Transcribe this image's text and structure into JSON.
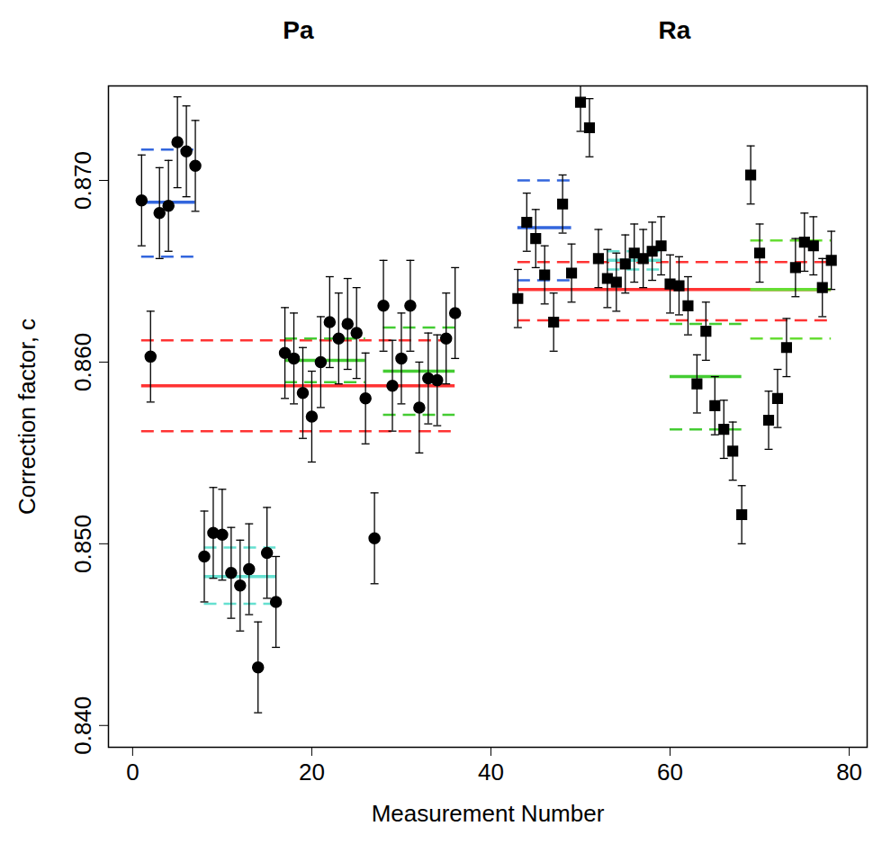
{
  "chart_data": {
    "type": "scatter",
    "xlabel": "Measurement Number",
    "ylabel": "Correction factor, c",
    "xlim": [
      -2.7,
      82
    ],
    "ylim": [
      0.8388,
      0.8752
    ],
    "xticks": [
      0,
      20,
      40,
      60,
      80
    ],
    "yticks": [
      {
        "value": 0.84,
        "label": "0.840"
      },
      {
        "value": 0.85,
        "label": "0.850"
      },
      {
        "value": 0.86,
        "label": "0.860"
      },
      {
        "value": 0.87,
        "label": "0.870"
      }
    ],
    "series": [
      {
        "name": "Pa",
        "marker": "circle",
        "color": "#000000",
        "x": [
          1,
          2,
          3,
          4,
          5,
          6,
          7,
          8,
          9,
          10,
          11,
          12,
          13,
          14,
          15,
          16,
          17,
          18,
          19,
          20,
          21,
          22,
          23,
          24,
          25,
          26,
          27,
          28,
          29,
          30,
          31,
          32,
          33,
          34,
          35,
          36
        ],
        "values": [
          0.8689,
          0.8603,
          0.8682,
          0.8686,
          0.8721,
          0.8716,
          0.8708,
          0.8493,
          0.8506,
          0.8505,
          0.8484,
          0.8477,
          0.8486,
          0.8432,
          0.8495,
          0.8468,
          0.8605,
          0.8602,
          0.8583,
          0.857,
          0.86,
          0.8622,
          0.8613,
          0.8621,
          0.8616,
          0.858,
          0.8503,
          0.8631,
          0.8587,
          0.8602,
          0.8631,
          0.8575,
          0.8591,
          0.859,
          0.8613,
          0.8627
        ],
        "errors": [
          0.0025,
          0.0025,
          0.0025,
          0.0025,
          0.0025,
          0.0025,
          0.0025,
          0.0025,
          0.0025,
          0.0025,
          0.0025,
          0.0025,
          0.0025,
          0.0025,
          0.0025,
          0.0025,
          0.0025,
          0.0025,
          0.0025,
          0.0025,
          0.0025,
          0.0025,
          0.0025,
          0.0025,
          0.0025,
          0.0025,
          0.0025,
          0.0025,
          0.0025,
          0.0025,
          0.0025,
          0.0025,
          0.0025,
          0.0025,
          0.0025,
          0.0025
        ]
      },
      {
        "name": "Ra",
        "marker": "square",
        "color": "#000000",
        "x": [
          43,
          44,
          45,
          46,
          47,
          48,
          49,
          50,
          51,
          52,
          53,
          54,
          55,
          56,
          57,
          58,
          59,
          60,
          61,
          62,
          63,
          64,
          65,
          66,
          67,
          68,
          69,
          70,
          71,
          72,
          73,
          74,
          75,
          76,
          77,
          78
        ],
        "values": [
          0.8635,
          0.8677,
          0.8668,
          0.8648,
          0.8622,
          0.8687,
          0.8649,
          0.8743,
          0.8729,
          0.8657,
          0.8646,
          0.8644,
          0.8654,
          0.866,
          0.8657,
          0.8661,
          0.8664,
          0.8643,
          0.8642,
          0.8631,
          0.8588,
          0.8617,
          0.8576,
          0.8563,
          0.8551,
          0.8516,
          0.8703,
          0.866,
          0.8568,
          0.858,
          0.8608,
          0.8652,
          0.8666,
          0.8664,
          0.8641,
          0.8656
        ],
        "errors": [
          0.0016,
          0.0016,
          0.0016,
          0.0016,
          0.0016,
          0.0016,
          0.0016,
          0.0016,
          0.0016,
          0.0016,
          0.0016,
          0.0016,
          0.0016,
          0.0016,
          0.0016,
          0.0016,
          0.0016,
          0.0016,
          0.0016,
          0.0016,
          0.0016,
          0.0016,
          0.0016,
          0.0016,
          0.0016,
          0.0016,
          0.0016,
          0.0016,
          0.0016,
          0.0016,
          0.0016,
          0.0016,
          0.0016,
          0.0016,
          0.0016,
          0.0016
        ]
      }
    ],
    "reference_lines": [
      {
        "color": "#ff3333",
        "x": [
          1,
          36
        ],
        "mean": 0.8587,
        "lower": 0.8562,
        "upper": 0.8612
      },
      {
        "color": "#3366dd",
        "x": [
          1,
          7
        ],
        "mean": 0.8688,
        "lower": 0.8658,
        "upper": 0.8717
      },
      {
        "color": "#66e0d0",
        "x": [
          8,
          16
        ],
        "mean": 0.8482,
        "lower": 0.8467,
        "upper": 0.8498
      },
      {
        "color": "#44cc33",
        "x": [
          17,
          26
        ],
        "mean": 0.8601,
        "lower": 0.8589,
        "upper": 0.8613
      },
      {
        "color": "#44cc33",
        "x": [
          28,
          36
        ],
        "mean": 0.8595,
        "lower": 0.8571,
        "upper": 0.8619
      },
      {
        "color": "#ff3333",
        "x": [
          43,
          78
        ],
        "mean": 0.864,
        "lower": 0.8623,
        "upper": 0.8655
      },
      {
        "color": "#3366dd",
        "x": [
          43,
          49
        ],
        "mean": 0.8674,
        "lower": 0.8645,
        "upper": 0.87
      },
      {
        "color": "#66e0d0",
        "x": [
          53,
          59
        ],
        "mean": 0.8656,
        "lower": 0.8651,
        "upper": 0.8661
      },
      {
        "color": "#44cc33",
        "x": [
          60,
          68
        ],
        "mean": 0.8592,
        "lower": 0.8563,
        "upper": 0.8621
      },
      {
        "color": "#66dd33",
        "x": [
          69,
          78
        ],
        "mean": 0.864,
        "lower": 0.8613,
        "upper": 0.8667
      }
    ]
  }
}
